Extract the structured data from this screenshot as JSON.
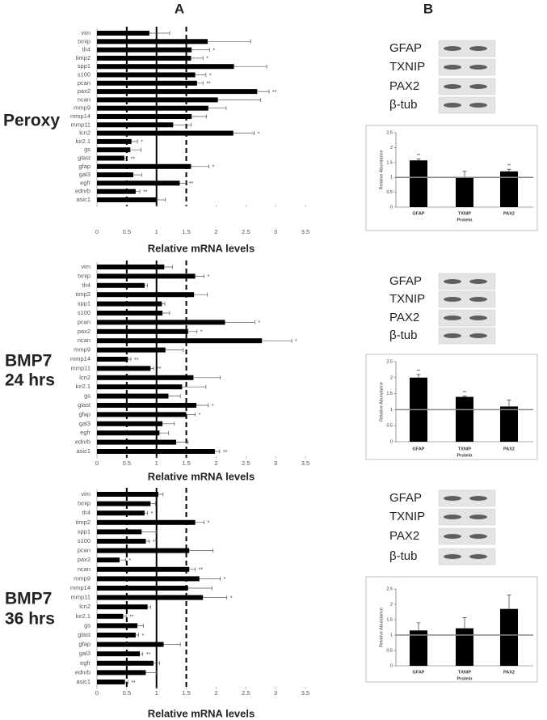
{
  "panel_labels": [
    "A",
    "B"
  ],
  "row_labels": [
    [
      "Peroxy"
    ],
    [
      "BMP7",
      "24 hrs"
    ],
    [
      "BMP7",
      "36 hrs"
    ]
  ],
  "blots": [
    {
      "labels": [
        "GFAP",
        "TXNIP",
        "PAX2",
        "β-tub"
      ]
    },
    {
      "labels": [
        "GFAP",
        "TXNIP",
        "PAX2",
        "β-tub"
      ]
    },
    {
      "labels": [
        "GFAP",
        "TXNIP",
        "PAX2",
        "β-tub"
      ]
    }
  ],
  "chart_data": [
    {
      "type": "bar",
      "orientation": "horizontal",
      "color": "#000000",
      "xlabel": "Relative mRNA levels",
      "categories": [
        "vim",
        "txnip",
        "tlr4",
        "timp2",
        "spp1",
        "s100",
        "pcan",
        "pax2",
        "ncan",
        "mmp9",
        "mmp14",
        "mmp11",
        "lcn2",
        "kir2.1",
        "gs",
        "glast",
        "gfap",
        "gal3",
        "egfr",
        "ednrb",
        "asic1"
      ],
      "values": [
        0.88,
        1.86,
        1.59,
        1.58,
        2.3,
        1.65,
        1.68,
        2.69,
        2.03,
        1.87,
        1.59,
        1.28,
        2.29,
        0.58,
        0.56,
        0.46,
        1.58,
        0.61,
        1.39,
        0.65,
        1.0
      ],
      "errors": [
        0.34,
        0.72,
        0.3,
        0.2,
        0.55,
        0.18,
        0.1,
        0.2,
        0.72,
        0.3,
        0.25,
        0.3,
        0.35,
        0.1,
        0.18,
        0.05,
        0.3,
        0.14,
        0.1,
        0.07,
        0.15
      ],
      "significance": [
        null,
        null,
        "*",
        "*",
        null,
        "*",
        "**",
        "**",
        null,
        null,
        null,
        null,
        "*",
        "*",
        null,
        "**",
        "*",
        null,
        "**",
        "**",
        null
      ],
      "xlim": [
        0,
        3.5
      ],
      "xticks": [
        0,
        0.5,
        1,
        1.5,
        2,
        2.5,
        3,
        3.5
      ],
      "reference_lines": [
        {
          "value": 0.5,
          "dashed": true
        },
        {
          "value": 1,
          "dashed": false
        },
        {
          "value": 1.5,
          "dashed": true
        }
      ]
    },
    {
      "type": "bar",
      "orientation": "horizontal",
      "color": "#000000",
      "xlabel": "Relative mRNA levels",
      "categories": [
        "vim",
        "txnip",
        "tlr4",
        "timp2",
        "spp1",
        "s100",
        "pcan",
        "pax2",
        "ncan",
        "mmp9",
        "mmp14",
        "mmp11",
        "lcn2",
        "kir2.1",
        "gs",
        "glast",
        "gfap",
        "gal3",
        "egfr",
        "ednrb",
        "asic1"
      ],
      "values": [
        1.13,
        1.65,
        0.8,
        1.63,
        1.09,
        1.1,
        2.15,
        1.53,
        2.77,
        1.15,
        0.52,
        0.9,
        1.62,
        1.43,
        1.2,
        1.67,
        1.5,
        1.1,
        1.05,
        1.33,
        1.98
      ],
      "errors": [
        0.14,
        0.15,
        0.05,
        0.22,
        0.05,
        0.12,
        0.5,
        0.15,
        0.5,
        0.3,
        0.05,
        0.05,
        0.45,
        0.4,
        0.2,
        0.2,
        0.15,
        0.2,
        0.15,
        0.2,
        0.08
      ],
      "significance": [
        null,
        "*",
        null,
        null,
        null,
        null,
        "*",
        "*",
        "*",
        null,
        "**",
        "**",
        null,
        null,
        null,
        "*",
        "*",
        null,
        null,
        null,
        "**"
      ],
      "xlim": [
        0,
        3.5
      ],
      "xticks": [
        0,
        0.5,
        1,
        1.5,
        2,
        2.5,
        3,
        3.5
      ],
      "reference_lines": [
        {
          "value": 0.5,
          "dashed": true
        },
        {
          "value": 1,
          "dashed": false
        },
        {
          "value": 1.5,
          "dashed": true
        }
      ]
    },
    {
      "type": "bar",
      "orientation": "horizontal",
      "color": "#000000",
      "xlabel": "Relative mRNA levels",
      "categories": [
        "vim",
        "txnip",
        "tlr4",
        "timp2",
        "spp1",
        "s100",
        "pcan",
        "pax2",
        "ncan",
        "mmp9",
        "mmp14",
        "mmp11",
        "lcn2",
        "kir2.1",
        "gs",
        "glast",
        "gfap",
        "gal3",
        "egfr",
        "ednrb",
        "asic1"
      ],
      "values": [
        1.03,
        0.9,
        0.8,
        1.65,
        0.75,
        0.82,
        1.55,
        0.38,
        1.55,
        1.72,
        1.53,
        1.78,
        0.85,
        0.44,
        0.68,
        0.65,
        1.12,
        0.72,
        0.95,
        0.82,
        0.47
      ],
      "errors": [
        0.08,
        0.08,
        0.05,
        0.15,
        0.25,
        0.06,
        0.4,
        0.1,
        0.1,
        0.35,
        0.4,
        0.4,
        0.05,
        0.05,
        0.1,
        0.05,
        0.28,
        0.05,
        0.1,
        0.18,
        0.05
      ],
      "significance": [
        null,
        null,
        "*",
        "*",
        null,
        "**",
        null,
        "*",
        "**",
        "*",
        null,
        "*",
        null,
        "**",
        null,
        "*",
        null,
        "**",
        null,
        null,
        "**"
      ],
      "xlim": [
        0,
        3.5
      ],
      "xticks": [
        0,
        0.5,
        1,
        1.5,
        2,
        2.5,
        3,
        3.5
      ],
      "reference_lines": [
        {
          "value": 0.5,
          "dashed": true
        },
        {
          "value": 1,
          "dashed": false
        },
        {
          "value": 1.5,
          "dashed": true
        }
      ]
    },
    {
      "type": "bar",
      "orientation": "vertical",
      "color": "#000000",
      "xlabel": "Protein",
      "ylabel": "Relative Abundance",
      "categories": [
        "GFAP",
        "TXNIP",
        "PAX2"
      ],
      "values": [
        1.57,
        1.0,
        1.2
      ],
      "errors": [
        0.05,
        0.2,
        0.07
      ],
      "significance": [
        "**",
        null,
        "**"
      ],
      "ylim": [
        0,
        2.5
      ],
      "yticks": [
        0,
        0.5,
        1,
        1.5,
        2,
        2.5
      ],
      "reference_lines": [
        {
          "value": 1,
          "dashed": false
        }
      ]
    },
    {
      "type": "bar",
      "orientation": "vertical",
      "color": "#000000",
      "xlabel": "Protein",
      "ylabel": "Relative Abundance",
      "categories": [
        "GFAP",
        "TXNIP",
        "PAX2"
      ],
      "values": [
        2.0,
        1.4,
        1.1
      ],
      "errors": [
        0.1,
        0.03,
        0.2
      ],
      "significance": [
        "**",
        "**",
        null
      ],
      "ylim": [
        0,
        2.5
      ],
      "yticks": [
        0,
        0.5,
        1,
        1.5,
        2,
        2.5
      ],
      "reference_lines": [
        {
          "value": 1,
          "dashed": false
        }
      ]
    },
    {
      "type": "bar",
      "orientation": "vertical",
      "color": "#000000",
      "xlabel": "Protein",
      "ylabel": "Relative Abundance",
      "categories": [
        "GFAP",
        "TXNIP",
        "PAX2"
      ],
      "values": [
        1.15,
        1.22,
        1.85
      ],
      "errors": [
        0.25,
        0.35,
        0.45
      ],
      "significance": [
        null,
        null,
        null
      ],
      "ylim": [
        0,
        2.5
      ],
      "yticks": [
        0,
        0.5,
        1,
        1.5,
        2,
        2.5
      ],
      "reference_lines": [
        {
          "value": 1,
          "dashed": false
        }
      ]
    }
  ]
}
